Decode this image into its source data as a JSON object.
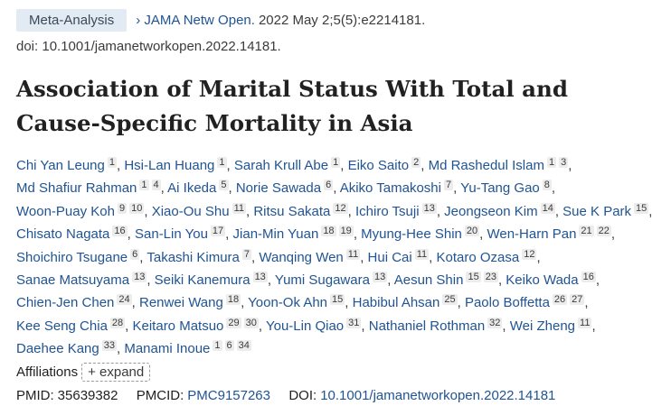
{
  "header": {
    "badge": "Meta-Analysis",
    "chevron": "›",
    "journal_link": "JAMA Netw Open.",
    "journal_citation": "2022 May 2;5(5):e2214181.",
    "doi": "doi: 10.1001/jamanetworkopen.2022.14181."
  },
  "article": {
    "title": "Association of Marital Status With Total and Cause-Specific Mortality in Asia"
  },
  "authors": [
    {
      "name": "Chi Yan Leung",
      "aff": [
        "1"
      ]
    },
    {
      "name": "Hsi-Lan Huang",
      "aff": [
        "1"
      ]
    },
    {
      "name": "Sarah Krull Abe",
      "aff": [
        "1"
      ]
    },
    {
      "name": "Eiko Saito",
      "aff": [
        "2"
      ]
    },
    {
      "name": "Md Rashedul Islam",
      "aff": [
        "1",
        "3"
      ]
    },
    {
      "name": "Md Shafiur Rahman",
      "aff": [
        "1",
        "4"
      ]
    },
    {
      "name": "Ai Ikeda",
      "aff": [
        "5"
      ]
    },
    {
      "name": "Norie Sawada",
      "aff": [
        "6"
      ]
    },
    {
      "name": "Akiko Tamakoshi",
      "aff": [
        "7"
      ]
    },
    {
      "name": "Yu-Tang Gao",
      "aff": [
        "8"
      ]
    },
    {
      "name": "Woon-Puay Koh",
      "aff": [
        "9",
        "10"
      ]
    },
    {
      "name": "Xiao-Ou Shu",
      "aff": [
        "11"
      ]
    },
    {
      "name": "Ritsu Sakata",
      "aff": [
        "12"
      ]
    },
    {
      "name": "Ichiro Tsuji",
      "aff": [
        "13"
      ]
    },
    {
      "name": "Jeongseon Kim",
      "aff": [
        "14"
      ]
    },
    {
      "name": "Sue K Park",
      "aff": [
        "15"
      ]
    },
    {
      "name": "Chisato Nagata",
      "aff": [
        "16"
      ]
    },
    {
      "name": "San-Lin You",
      "aff": [
        "17"
      ]
    },
    {
      "name": "Jian-Min Yuan",
      "aff": [
        "18",
        "19"
      ]
    },
    {
      "name": "Myung-Hee Shin",
      "aff": [
        "20"
      ]
    },
    {
      "name": "Wen-Harn Pan",
      "aff": [
        "21",
        "22"
      ]
    },
    {
      "name": "Shoichiro Tsugane",
      "aff": [
        "6"
      ]
    },
    {
      "name": "Takashi Kimura",
      "aff": [
        "7"
      ]
    },
    {
      "name": "Wanqing Wen",
      "aff": [
        "11"
      ]
    },
    {
      "name": "Hui Cai",
      "aff": [
        "11"
      ]
    },
    {
      "name": "Kotaro Ozasa",
      "aff": [
        "12"
      ]
    },
    {
      "name": "Sanae Matsuyama",
      "aff": [
        "13"
      ]
    },
    {
      "name": "Seiki Kanemura",
      "aff": [
        "13"
      ]
    },
    {
      "name": "Yumi Sugawara",
      "aff": [
        "13"
      ]
    },
    {
      "name": "Aesun Shin",
      "aff": [
        "15",
        "23"
      ]
    },
    {
      "name": "Keiko Wada",
      "aff": [
        "16"
      ]
    },
    {
      "name": "Chien-Jen Chen",
      "aff": [
        "24"
      ]
    },
    {
      "name": "Renwei Wang",
      "aff": [
        "18"
      ]
    },
    {
      "name": "Yoon-Ok Ahn",
      "aff": [
        "15"
      ]
    },
    {
      "name": "Habibul Ahsan",
      "aff": [
        "25"
      ]
    },
    {
      "name": "Paolo Boffetta",
      "aff": [
        "26",
        "27"
      ]
    },
    {
      "name": "Kee Seng Chia",
      "aff": [
        "28"
      ]
    },
    {
      "name": "Keitaro Matsuo",
      "aff": [
        "29",
        "30"
      ]
    },
    {
      "name": "You-Lin Qiao",
      "aff": [
        "31"
      ]
    },
    {
      "name": "Nathaniel Rothman",
      "aff": [
        "32"
      ]
    },
    {
      "name": "Wei Zheng",
      "aff": [
        "11"
      ]
    },
    {
      "name": "Daehee Kang",
      "aff": [
        "33"
      ]
    },
    {
      "name": "Manami Inoue",
      "aff": [
        "1",
        "6",
        "34"
      ]
    }
  ],
  "affiliations": {
    "label": "Affiliations",
    "expand_label": "+ expand"
  },
  "identifiers": {
    "pmid_label": "PMID:",
    "pmid": "35639382",
    "pmcid_label": "PMCID:",
    "pmcid": "PMC9157263",
    "doi_label": "DOI:",
    "doi": "10.1001/jamanetworkopen.2022.14181"
  },
  "colors": {
    "link": "#205493",
    "badge_bg": "#e2eaf3",
    "text": "#212121"
  }
}
